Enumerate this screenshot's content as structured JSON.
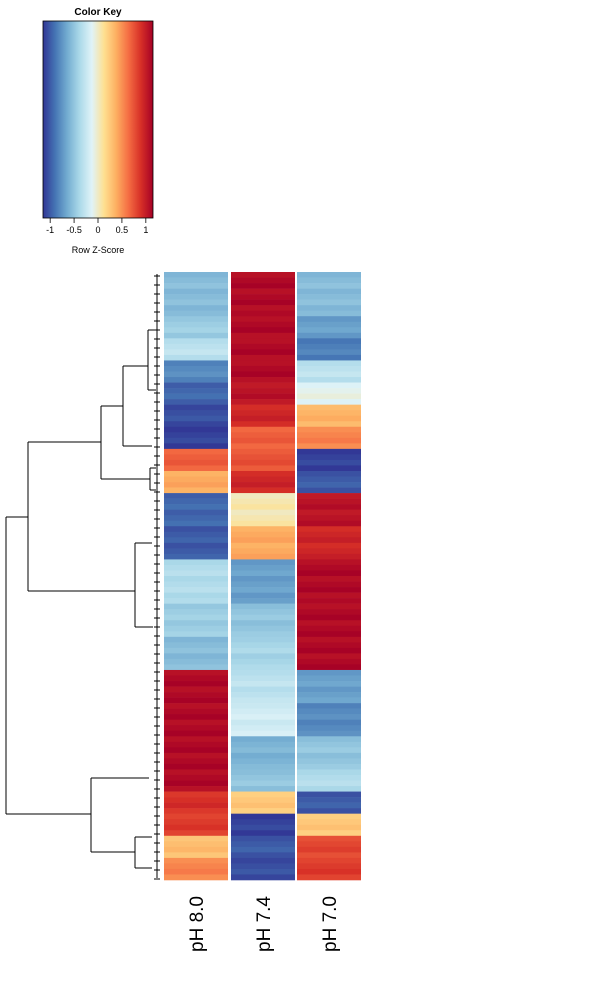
{
  "chart_data": {
    "type": "heatmap",
    "color_key": {
      "title": "Color Key",
      "xlabel": "Row Z-Score",
      "ticks": [
        -1,
        -0.5,
        0,
        0.5,
        1
      ],
      "tick_labels": [
        "-1",
        "-0.5",
        "0",
        "0.5",
        "1"
      ],
      "range": [
        -1.15,
        1.15
      ],
      "colors": [
        "#313695",
        "#4575b4",
        "#74add1",
        "#abd9e9",
        "#e0f3f8",
        "#fee090",
        "#fdae61",
        "#f46d43",
        "#d73027",
        "#a50026"
      ]
    },
    "columns": [
      "pH 8.0",
      "pH 7.4",
      "pH 7.0"
    ],
    "row_blocks": [
      {
        "rows": 8,
        "values": [
          -0.55,
          1.1,
          -0.55
        ]
      },
      {
        "rows": 4,
        "values": [
          -0.45,
          1.1,
          -0.7
        ]
      },
      {
        "rows": 4,
        "values": [
          -0.3,
          1.1,
          -0.85
        ]
      },
      {
        "rows": 4,
        "values": [
          -0.8,
          1.1,
          -0.3
        ]
      },
      {
        "rows": 4,
        "values": [
          -0.95,
          1.05,
          -0.1
        ]
      },
      {
        "rows": 4,
        "values": [
          -1.05,
          0.95,
          0.35
        ]
      },
      {
        "rows": 4,
        "values": [
          -1.1,
          0.7,
          0.55
        ]
      },
      {
        "rows": 4,
        "values": [
          0.7,
          0.75,
          -1.1
        ]
      },
      {
        "rows": 4,
        "values": [
          0.4,
          0.95,
          -1.0
        ]
      },
      {
        "rows": 6,
        "values": [
          -0.95,
          0.05,
          1.05
        ]
      },
      {
        "rows": 6,
        "values": [
          -1.0,
          0.4,
          0.95
        ]
      },
      {
        "rows": 8,
        "values": [
          -0.35,
          -0.7,
          1.1
        ]
      },
      {
        "rows": 6,
        "values": [
          -0.45,
          -0.5,
          1.1
        ]
      },
      {
        "rows": 6,
        "values": [
          -0.55,
          -0.4,
          1.1
        ]
      },
      {
        "rows": 6,
        "values": [
          1.1,
          -0.3,
          -0.7
        ]
      },
      {
        "rows": 6,
        "values": [
          1.1,
          -0.2,
          -0.8
        ]
      },
      {
        "rows": 6,
        "values": [
          1.1,
          -0.6,
          -0.5
        ]
      },
      {
        "rows": 4,
        "values": [
          1.1,
          -0.5,
          -0.35
        ]
      },
      {
        "rows": 4,
        "values": [
          0.9,
          0.25,
          -1.0
        ]
      },
      {
        "rows": 4,
        "values": [
          0.85,
          -1.1,
          0.25
        ]
      },
      {
        "rows": 4,
        "values": [
          0.3,
          -1.0,
          0.8
        ]
      },
      {
        "rows": 4,
        "values": [
          0.55,
          -1.05,
          0.85
        ]
      }
    ],
    "title": "",
    "xlabel": "",
    "ylabel": ""
  }
}
